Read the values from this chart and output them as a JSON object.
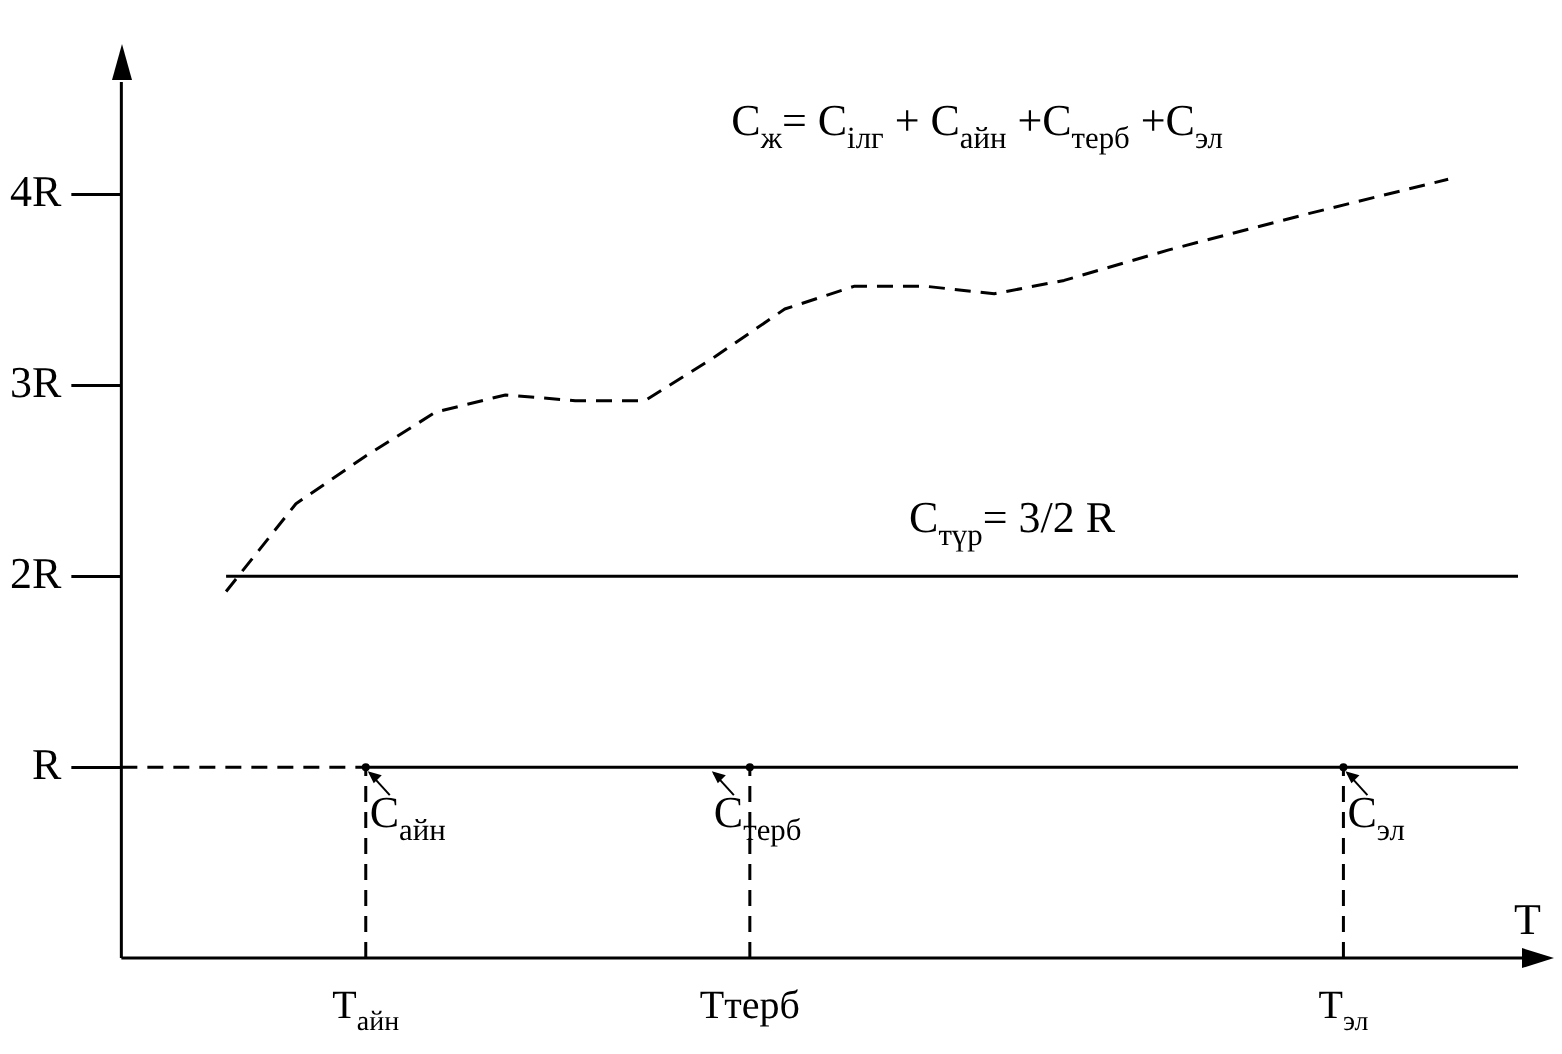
{
  "chart_data": {
    "type": "line",
    "xlabel": "T",
    "categories": [
      null,
      null,
      null,
      null,
      null,
      null,
      null,
      "T$_{айн}$",
      null,
      null,
      null,
      null,
      null,
      null,
      null,
      null,
      null,
      null,
      "Tтерб",
      null,
      null,
      null,
      null,
      null,
      null,
      null,
      null,
      null,
      null,
      null,
      null,
      null,
      null,
      null,
      null,
      "T$_{эл}$",
      null,
      null,
      null,
      null,
      null
    ],
    "ylim": [
      0,
      4.6
    ],
    "yticks": [
      {
        "value": 1,
        "label": "R"
      },
      {
        "value": 2,
        "label": "2R"
      },
      {
        "value": 3,
        "label": "3R"
      },
      {
        "value": 4,
        "label": "4R"
      }
    ],
    "series": [
      {
        "name": "C$_{ж}$= C$_{ілг}$ + C$_{айн}$ +C$_{терб}$ +C$_{эл}$",
        "color": "#000000",
        "line_style": "dashed",
        "values": [
          null,
          null,
          null,
          1.92,
          null,
          2.38,
          null,
          2.63,
          null,
          2.86,
          null,
          2.95,
          null,
          2.92,
          null,
          2.92,
          null,
          3.15,
          null,
          3.4,
          null,
          3.52,
          null,
          3.52,
          null,
          3.48,
          null,
          3.55,
          null,
          null,
          3.71,
          null,
          null,
          null,
          3.9,
          null,
          null,
          null,
          4.08,
          null,
          null
        ]
      },
      {
        "name": "C$_{түр}$= 3/2 R",
        "color": "#000000",
        "line_style": "solid",
        "values": [
          null,
          null,
          null,
          2,
          null,
          null,
          null,
          null,
          null,
          null,
          null,
          null,
          null,
          null,
          null,
          null,
          null,
          null,
          null,
          null,
          null,
          null,
          null,
          null,
          null,
          null,
          null,
          null,
          null,
          null,
          null,
          null,
          null,
          null,
          null,
          null,
          null,
          null,
          null,
          null,
          2
        ]
      },
      {
        "color": "#000000",
        "line_style": "solid",
        "values": [
          null,
          null,
          null,
          null,
          null,
          null,
          null,
          1,
          null,
          null,
          null,
          null,
          null,
          null,
          null,
          null,
          null,
          null,
          null,
          null,
          null,
          null,
          null,
          null,
          null,
          null,
          null,
          null,
          null,
          null,
          null,
          null,
          null,
          null,
          null,
          null,
          null,
          null,
          null,
          null,
          1
        ]
      },
      {
        "color": "#000000",
        "line_style": "dashed",
        "values": [
          1,
          null,
          null,
          null,
          null,
          null,
          null,
          1,
          null,
          null,
          null,
          null,
          null,
          null,
          null,
          null,
          null,
          null,
          null,
          null,
          null,
          null,
          null,
          null,
          null,
          null,
          null,
          null,
          null,
          null,
          null,
          null,
          null,
          null,
          null,
          null,
          null,
          null,
          null,
          null,
          null
        ]
      },
      {
        "type": "lollipop",
        "color": "#000000",
        "line_style": "dashed",
        "values": [
          null,
          null,
          null,
          null,
          null,
          null,
          null,
          1,
          null,
          null,
          null,
          null,
          null,
          null,
          null,
          null,
          null,
          null,
          1,
          null,
          null,
          null,
          null,
          null,
          null,
          null,
          null,
          null,
          null,
          null,
          null,
          null,
          null,
          null,
          null,
          1,
          null,
          null,
          null,
          null,
          null
        ]
      }
    ],
    "annotations": [
      {
        "text": "C$_{айн}$",
        "x": "T$_{айн}$",
        "y": 1
      },
      {
        "text": "C$_{терб}$",
        "x": "Tтерб",
        "y": 1
      },
      {
        "text": "C$_{эл}$",
        "x": "T$_{эл}$",
        "y": 1
      }
    ],
    "grid": false,
    "legend": false
  }
}
